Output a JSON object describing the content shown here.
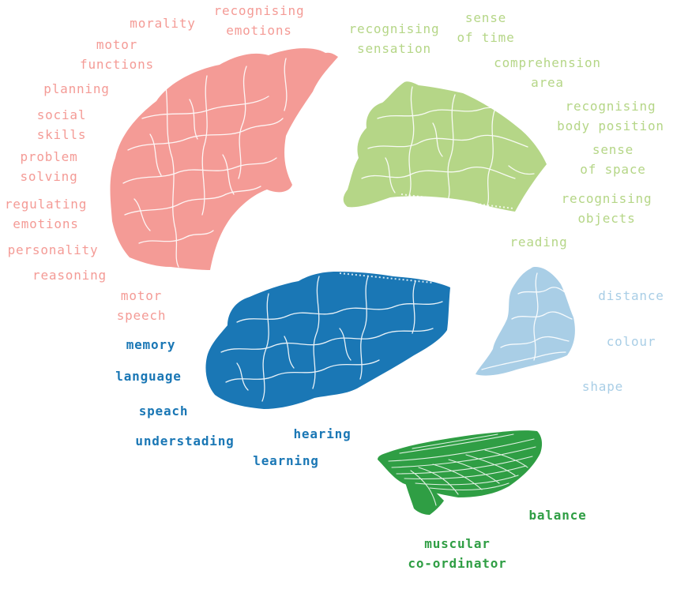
{
  "colors": {
    "frontal": "#f49b96",
    "parietal": "#b5d687",
    "temporal": "#1a77b5",
    "occipital": "#a9cee6",
    "cerebellum": "#2f9e44",
    "background": "#ffffff"
  },
  "frontal": {
    "morality": "morality",
    "recognising_emotions": [
      "recognising",
      "emotions"
    ],
    "motor_functions": [
      "motor",
      "functions"
    ],
    "planning": "planning",
    "social_skills": [
      "social",
      "skills"
    ],
    "problem_solving": [
      "problem",
      "solving"
    ],
    "regulating_emotions": [
      "regulating",
      "emotions"
    ],
    "personality": "personality",
    "reasoning": "reasoning",
    "motor_speech": [
      "motor",
      "speech"
    ]
  },
  "parietal": {
    "recognising_sensation": [
      "recognising",
      "sensation"
    ],
    "sense_of_time": [
      "sense",
      "of time"
    ],
    "comprehension_area": [
      "comprehension",
      "area"
    ],
    "recognising_body_position": [
      "recognising",
      "body position"
    ],
    "sense_of_space": [
      "sense",
      "of space"
    ],
    "recognising_objects": [
      "recognising",
      "objects"
    ],
    "reading": "reading"
  },
  "temporal": {
    "memory": "memory",
    "language": "language",
    "speach": "speach",
    "understading": "understading",
    "hearing": "hearing",
    "learning": "learning"
  },
  "occipital": {
    "distance": "distance",
    "colour": "colour",
    "shape": "shape"
  },
  "cerebellum": {
    "balance": "balance",
    "muscular_coordinator": [
      "muscular",
      "co-ordinator"
    ]
  }
}
